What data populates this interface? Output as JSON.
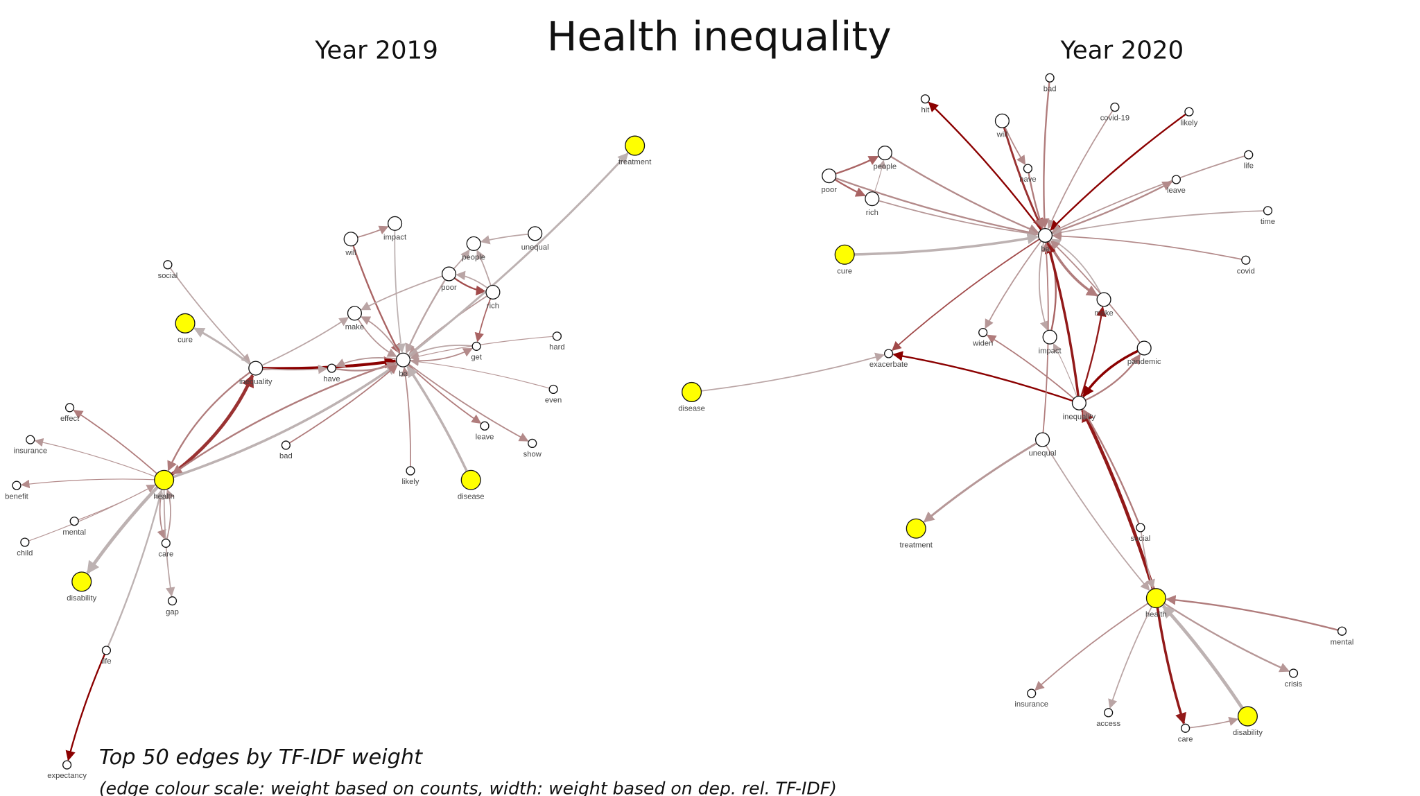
{
  "title": "Health inequality",
  "footnote": {
    "line1": "Top 50 edges by TF-IDF weight",
    "line2": "(edge colour scale: weight based on counts, width: weight based on dep. rel. TF-IDF)"
  },
  "colors": {
    "low": "#c0c0c0",
    "mid": "#b07c7c",
    "high": "#8b0000",
    "highlight_node": "#ffff00",
    "node": "#ffffff"
  },
  "graphs": [
    {
      "id": "g2019",
      "year_label": "Year 2019",
      "highlighted_nodes": [
        "health",
        "cure",
        "disability",
        "disease",
        "treatment"
      ],
      "nodes": [
        "be",
        "inequality",
        "health",
        "cure",
        "disability",
        "disease",
        "treatment",
        "social",
        "make",
        "will",
        "impact",
        "people",
        "poor",
        "rich",
        "unequal",
        "get",
        "hard",
        "even",
        "leave",
        "show",
        "likely",
        "bad",
        "have",
        "effect",
        "insurance",
        "benefit",
        "mental",
        "child",
        "care",
        "gap",
        "life",
        "expectancy"
      ],
      "edges": [
        {
          "from": "inequality",
          "to": "be",
          "count_weight": 1.0,
          "tfidf_weight": 3.5
        },
        {
          "from": "health",
          "to": "inequality",
          "count_weight": 0.8,
          "tfidf_weight": 4
        },
        {
          "from": "inequality",
          "to": "health",
          "count_weight": 0.5,
          "tfidf_weight": 2
        },
        {
          "from": "be",
          "to": "health",
          "count_weight": 0.5,
          "tfidf_weight": 2
        },
        {
          "from": "health",
          "to": "be",
          "count_weight": 0.1,
          "tfidf_weight": 3
        },
        {
          "from": "social",
          "to": "inequality",
          "count_weight": 0.2,
          "tfidf_weight": 1.5
        },
        {
          "from": "inequality",
          "to": "cure",
          "count_weight": 0.1,
          "tfidf_weight": 2.5
        },
        {
          "from": "inequality",
          "to": "make",
          "count_weight": 0.2,
          "tfidf_weight": 1.5
        },
        {
          "from": "have",
          "to": "be",
          "count_weight": 0.4,
          "tfidf_weight": 2
        },
        {
          "from": "be",
          "to": "have",
          "count_weight": 0.3,
          "tfidf_weight": 1.5
        },
        {
          "from": "inequality",
          "to": "have",
          "count_weight": 0.2,
          "tfidf_weight": 1.5
        },
        {
          "from": "will",
          "to": "impact",
          "count_weight": 0.4,
          "tfidf_weight": 1.5
        },
        {
          "from": "will",
          "to": "be",
          "count_weight": 0.6,
          "tfidf_weight": 2
        },
        {
          "from": "impact",
          "to": "be",
          "count_weight": 0.1,
          "tfidf_weight": 1.5
        },
        {
          "from": "make",
          "to": "be",
          "count_weight": 0.3,
          "tfidf_weight": 1.5
        },
        {
          "from": "be",
          "to": "make",
          "count_weight": 0.3,
          "tfidf_weight": 1.5
        },
        {
          "from": "poor",
          "to": "make",
          "count_weight": 0.2,
          "tfidf_weight": 1.5
        },
        {
          "from": "poor",
          "to": "people",
          "count_weight": 0.2,
          "tfidf_weight": 1.5
        },
        {
          "from": "poor",
          "to": "rich",
          "count_weight": 0.7,
          "tfidf_weight": 2
        },
        {
          "from": "rich",
          "to": "poor",
          "count_weight": 0.2,
          "tfidf_weight": 1.5
        },
        {
          "from": "rich",
          "to": "get",
          "count_weight": 0.6,
          "tfidf_weight": 1.5
        },
        {
          "from": "rich",
          "to": "people",
          "count_weight": 0.2,
          "tfidf_weight": 1.5
        },
        {
          "from": "poor",
          "to": "be",
          "count_weight": 0.2,
          "tfidf_weight": 2
        },
        {
          "from": "rich",
          "to": "be",
          "count_weight": 0.3,
          "tfidf_weight": 1.5
        },
        {
          "from": "unequal",
          "to": "people",
          "count_weight": 0.2,
          "tfidf_weight": 1.5
        },
        {
          "from": "be",
          "to": "treatment",
          "count_weight": 0.1,
          "tfidf_weight": 2.5
        },
        {
          "from": "be",
          "to": "get",
          "count_weight": 0.4,
          "tfidf_weight": 1.5
        },
        {
          "from": "get",
          "to": "be",
          "count_weight": 0.2,
          "tfidf_weight": 1.5
        },
        {
          "from": "hard",
          "to": "be",
          "count_weight": 0.3,
          "tfidf_weight": 1
        },
        {
          "from": "even",
          "to": "be",
          "count_weight": 0.3,
          "tfidf_weight": 1
        },
        {
          "from": "be",
          "to": "leave",
          "count_weight": 0.5,
          "tfidf_weight": 1.5
        },
        {
          "from": "be",
          "to": "show",
          "count_weight": 0.4,
          "tfidf_weight": 1.5
        },
        {
          "from": "likely",
          "to": "be",
          "count_weight": 0.4,
          "tfidf_weight": 1.5
        },
        {
          "from": "disease",
          "to": "be",
          "count_weight": 0.1,
          "tfidf_weight": 3
        },
        {
          "from": "bad",
          "to": "be",
          "count_weight": 0.5,
          "tfidf_weight": 1.5
        },
        {
          "from": "health",
          "to": "effect",
          "count_weight": 0.5,
          "tfidf_weight": 1.5
        },
        {
          "from": "health",
          "to": "insurance",
          "count_weight": 0.3,
          "tfidf_weight": 1
        },
        {
          "from": "health",
          "to": "benefit",
          "count_weight": 0.4,
          "tfidf_weight": 1
        },
        {
          "from": "mental",
          "to": "health",
          "count_weight": 0.4,
          "tfidf_weight": 1
        },
        {
          "from": "child",
          "to": "health",
          "count_weight": 0.3,
          "tfidf_weight": 1
        },
        {
          "from": "health",
          "to": "disability",
          "count_weight": 0.1,
          "tfidf_weight": 4
        },
        {
          "from": "health",
          "to": "care",
          "count_weight": 0.4,
          "tfidf_weight": 1.5
        },
        {
          "from": "care",
          "to": "health",
          "count_weight": 0.3,
          "tfidf_weight": 1.5
        },
        {
          "from": "health",
          "to": "gap",
          "count_weight": 0.2,
          "tfidf_weight": 1.5
        },
        {
          "from": "life",
          "to": "health",
          "count_weight": 0.1,
          "tfidf_weight": 2
        },
        {
          "from": "life",
          "to": "expectancy",
          "count_weight": 1.0,
          "tfidf_weight": 2
        }
      ]
    },
    {
      "id": "g2020",
      "year_label": "Year 2020",
      "highlighted_nodes": [
        "cure",
        "disease",
        "treatment",
        "health",
        "disability"
      ],
      "nodes": [
        "be",
        "hit",
        "will",
        "bad",
        "covid-19",
        "likely",
        "have",
        "people",
        "poor",
        "rich",
        "cure",
        "life",
        "leave",
        "time",
        "covid",
        "make",
        "widen",
        "impact",
        "pandemic",
        "exacerbate",
        "disease",
        "inequality",
        "unequal",
        "treatment",
        "social",
        "health",
        "mental",
        "crisis",
        "insurance",
        "access",
        "care",
        "disability"
      ],
      "edges": [
        {
          "from": "be",
          "to": "hit",
          "count_weight": 1.0,
          "tfidf_weight": 2
        },
        {
          "from": "will",
          "to": "be",
          "count_weight": 0.8,
          "tfidf_weight": 2.5
        },
        {
          "from": "will",
          "to": "have",
          "count_weight": 0.4,
          "tfidf_weight": 1.5
        },
        {
          "from": "have",
          "to": "be",
          "count_weight": 0.5,
          "tfidf_weight": 2
        },
        {
          "from": "bad",
          "to": "be",
          "count_weight": 0.5,
          "tfidf_weight": 2
        },
        {
          "from": "covid-19",
          "to": "be",
          "count_weight": 0.3,
          "tfidf_weight": 1.5
        },
        {
          "from": "likely",
          "to": "be",
          "count_weight": 1.0,
          "tfidf_weight": 2
        },
        {
          "from": "poor",
          "to": "people",
          "count_weight": 0.6,
          "tfidf_weight": 2
        },
        {
          "from": "poor",
          "to": "rich",
          "count_weight": 0.6,
          "tfidf_weight": 2
        },
        {
          "from": "people",
          "to": "be",
          "count_weight": 0.4,
          "tfidf_weight": 2
        },
        {
          "from": "poor",
          "to": "be",
          "count_weight": 0.4,
          "tfidf_weight": 2
        },
        {
          "from": "rich",
          "to": "be",
          "count_weight": 0.3,
          "tfidf_weight": 1.5
        },
        {
          "from": "rich",
          "to": "people",
          "count_weight": 0.2,
          "tfidf_weight": 1
        },
        {
          "from": "cure",
          "to": "be",
          "count_weight": 0.1,
          "tfidf_weight": 3
        },
        {
          "from": "life",
          "to": "be",
          "count_weight": 0.3,
          "tfidf_weight": 1.5
        },
        {
          "from": "be",
          "to": "leave",
          "count_weight": 0.4,
          "tfidf_weight": 2
        },
        {
          "from": "time",
          "to": "be",
          "count_weight": 0.2,
          "tfidf_weight": 1.5
        },
        {
          "from": "covid",
          "to": "be",
          "count_weight": 0.4,
          "tfidf_weight": 1.5
        },
        {
          "from": "be",
          "to": "make",
          "count_weight": 0.5,
          "tfidf_weight": 3
        },
        {
          "from": "make",
          "to": "be",
          "count_weight": 0.15,
          "tfidf_weight": 1.5
        },
        {
          "from": "be",
          "to": "widen",
          "count_weight": 0.3,
          "tfidf_weight": 1.5
        },
        {
          "from": "be",
          "to": "impact",
          "count_weight": 0.2,
          "tfidf_weight": 1.5
        },
        {
          "from": "impact",
          "to": "be",
          "count_weight": 0.6,
          "tfidf_weight": 2
        },
        {
          "from": "pandemic",
          "to": "be",
          "count_weight": 0.4,
          "tfidf_weight": 1.5
        },
        {
          "from": "be",
          "to": "exacerbate",
          "count_weight": 0.7,
          "tfidf_weight": 1.5
        },
        {
          "from": "disease",
          "to": "exacerbate",
          "count_weight": 0.2,
          "tfidf_weight": 1.5
        },
        {
          "from": "inequality",
          "to": "exacerbate",
          "count_weight": 1.0,
          "tfidf_weight": 2
        },
        {
          "from": "inequality",
          "to": "be",
          "count_weight": 0.9,
          "tfidf_weight": 3
        },
        {
          "from": "inequality",
          "to": "make",
          "count_weight": 0.9,
          "tfidf_weight": 2
        },
        {
          "from": "inequality",
          "to": "pandemic",
          "count_weight": 0.5,
          "tfidf_weight": 2
        },
        {
          "from": "pandemic",
          "to": "inequality",
          "count_weight": 1.0,
          "tfidf_weight": 3
        },
        {
          "from": "inequality",
          "to": "widen",
          "count_weight": 0.5,
          "tfidf_weight": 1.5
        },
        {
          "from": "inequality",
          "to": "impact",
          "count_weight": 0.2,
          "tfidf_weight": 1
        },
        {
          "from": "unequal",
          "to": "be",
          "count_weight": 0.5,
          "tfidf_weight": 1.5
        },
        {
          "from": "unequal",
          "to": "treatment",
          "count_weight": 0.3,
          "tfidf_weight": 2.5
        },
        {
          "from": "unequal",
          "to": "health",
          "count_weight": 0.2,
          "tfidf_weight": 1.5
        },
        {
          "from": "health",
          "to": "inequality",
          "count_weight": 0.9,
          "tfidf_weight": 4
        },
        {
          "from": "social",
          "to": "inequality",
          "count_weight": 0.5,
          "tfidf_weight": 2
        },
        {
          "from": "social",
          "to": "health",
          "count_weight": 0.2,
          "tfidf_weight": 1.5
        },
        {
          "from": "mental",
          "to": "health",
          "count_weight": 0.5,
          "tfidf_weight": 2
        },
        {
          "from": "health",
          "to": "crisis",
          "count_weight": 0.3,
          "tfidf_weight": 2
        },
        {
          "from": "health",
          "to": "insurance",
          "count_weight": 0.4,
          "tfidf_weight": 1.5
        },
        {
          "from": "health",
          "to": "access",
          "count_weight": 0.2,
          "tfidf_weight": 1.5
        },
        {
          "from": "health",
          "to": "care",
          "count_weight": 0.9,
          "tfidf_weight": 3
        },
        {
          "from": "care",
          "to": "disability",
          "count_weight": 0.3,
          "tfidf_weight": 1.5
        },
        {
          "from": "disability",
          "to": "health",
          "count_weight": 0.1,
          "tfidf_weight": 4
        }
      ]
    }
  ]
}
